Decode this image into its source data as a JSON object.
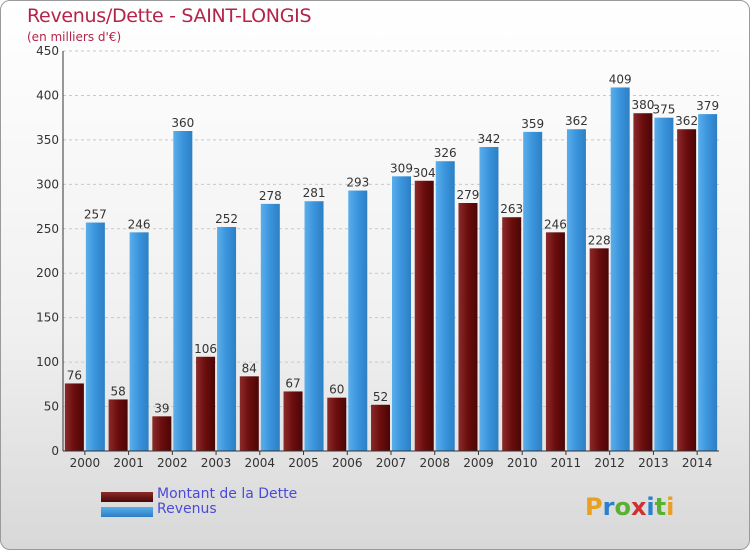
{
  "header": {
    "title": "Revenus/Dette - SAINT-LONGIS",
    "subtitle": "(en milliers d'€)"
  },
  "legend": {
    "items": [
      {
        "label": "Montant de la Dette",
        "color": "#6b0d0d"
      },
      {
        "label": "Revenus",
        "color": "#3a94dc"
      }
    ]
  },
  "logo": {
    "text": "Proxiti"
  },
  "chart_data": {
    "type": "bar",
    "title": "Revenus/Dette - SAINT-LONGIS",
    "subtitle": "(en milliers d'€)",
    "xlabel": "",
    "ylabel": "",
    "ylim": [
      0,
      450
    ],
    "yticks": [
      0,
      50,
      100,
      150,
      200,
      250,
      300,
      350,
      400,
      450
    ],
    "grid": true,
    "legend_position": "bottom-left",
    "categories": [
      "2000",
      "2001",
      "2002",
      "2003",
      "2004",
      "2005",
      "2006",
      "2007",
      "2008",
      "2009",
      "2010",
      "2011",
      "2012",
      "2013",
      "2014"
    ],
    "series": [
      {
        "name": "Montant de la Dette",
        "color": "#6b0d0d",
        "values": [
          76,
          58,
          39,
          106,
          84,
          67,
          60,
          52,
          304,
          279,
          263,
          246,
          228,
          380,
          362
        ]
      },
      {
        "name": "Revenus",
        "color": "#3a94dc",
        "values": [
          257,
          246,
          360,
          252,
          278,
          281,
          293,
          309,
          326,
          342,
          359,
          362,
          409,
          375,
          379
        ]
      }
    ]
  }
}
